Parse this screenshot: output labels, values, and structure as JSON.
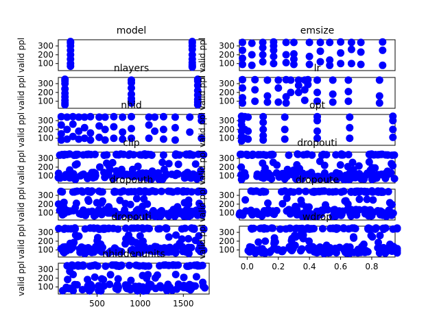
{
  "chart_data": [
    {
      "type": "scatter",
      "title": "model",
      "ylabel": "valid ppl",
      "yticks": [
        "100",
        "200",
        "300"
      ],
      "ylim": [
        20,
        370
      ],
      "xlim": [
        -0.1,
        1.1
      ],
      "xticks": [],
      "x": [
        0,
        0,
        0,
        0,
        0,
        0,
        0,
        0,
        1,
        1,
        1,
        1,
        1,
        1,
        1,
        1,
        1,
        1
      ],
      "y": [
        350,
        335,
        300,
        250,
        200,
        150,
        100,
        70,
        350,
        335,
        300,
        260,
        200,
        150,
        110,
        85,
        70,
        60
      ]
    },
    {
      "type": "scatter",
      "title": "emsize",
      "ylabel": "valid ppl",
      "yticks": [
        "100",
        "200",
        "300"
      ],
      "ylim": [
        20,
        370
      ],
      "xlim": [
        0,
        1
      ],
      "xticks": [],
      "x": [
        0.02,
        0.02,
        0.02,
        0.02,
        0.08,
        0.08,
        0.08,
        0.15,
        0.15,
        0.15,
        0.15,
        0.22,
        0.22,
        0.22,
        0.22,
        0.22,
        0.3,
        0.3,
        0.3,
        0.35,
        0.35,
        0.35,
        0.35,
        0.45,
        0.45,
        0.45,
        0.52,
        0.52,
        0.52,
        0.58,
        0.58,
        0.58,
        0.65,
        0.65,
        0.65,
        0.72,
        0.72,
        0.72,
        0.78,
        0.78,
        0.78,
        0.92,
        0.92,
        0.92
      ],
      "y": [
        340,
        250,
        160,
        90,
        330,
        200,
        80,
        340,
        280,
        200,
        120,
        345,
        300,
        250,
        180,
        100,
        340,
        200,
        110,
        340,
        210,
        150,
        90,
        340,
        180,
        90,
        340,
        240,
        120,
        340,
        140,
        80,
        345,
        220,
        100,
        340,
        260,
        100,
        340,
        230,
        90,
        345,
        250,
        80
      ]
    },
    {
      "type": "scatter",
      "title": "nlayers",
      "ylabel": "valid ppl",
      "yticks": [
        "100",
        "200",
        "300"
      ],
      "ylim": [
        20,
        370
      ],
      "xlim": [
        -0.1,
        2.1
      ],
      "xticks": [],
      "x": [
        0,
        0,
        0,
        0,
        0,
        0,
        0,
        0,
        0,
        1,
        1,
        1,
        1,
        1,
        1,
        1,
        2,
        2,
        2,
        2,
        2,
        2,
        2,
        2
      ],
      "y": [
        350,
        330,
        300,
        240,
        190,
        150,
        110,
        80,
        60,
        340,
        310,
        250,
        180,
        130,
        100,
        80,
        350,
        330,
        280,
        220,
        170,
        120,
        90,
        60
      ]
    },
    {
      "type": "scatter",
      "title": "lr",
      "ylabel": "valid ppl",
      "yticks": [
        "100",
        "200",
        "300"
      ],
      "ylim": [
        20,
        370
      ],
      "xlim": [
        0,
        1
      ],
      "xticks": [],
      "x": [
        0.02,
        0.02,
        0.02,
        0.02,
        0.1,
        0.1,
        0.1,
        0.18,
        0.18,
        0.18,
        0.25,
        0.25,
        0.25,
        0.3,
        0.3,
        0.3,
        0.33,
        0.33,
        0.38,
        0.38,
        0.38,
        0.42,
        0.42,
        0.42,
        0.44,
        0.44,
        0.5,
        0.5,
        0.5,
        0.6,
        0.6,
        0.6,
        0.7,
        0.7,
        0.7,
        0.9,
        0.9,
        0.9
      ],
      "y": [
        345,
        250,
        140,
        80,
        345,
        230,
        100,
        340,
        160,
        90,
        340,
        250,
        90,
        345,
        150,
        80,
        340,
        200,
        340,
        280,
        200,
        340,
        230,
        110,
        345,
        290,
        340,
        200,
        100,
        340,
        180,
        90,
        340,
        210,
        100,
        340,
        160,
        80
      ]
    },
    {
      "type": "scatter",
      "title": "nhid",
      "ylabel": "valid ppl",
      "yticks": [
        "100",
        "200",
        "300"
      ],
      "ylim": [
        20,
        370
      ],
      "xlim": [
        0,
        1
      ],
      "xticks": [],
      "x": [
        0.02,
        0.02,
        0.02,
        0.02,
        0.06,
        0.06,
        0.06,
        0.1,
        0.1,
        0.1,
        0.14,
        0.14,
        0.14,
        0.18,
        0.18,
        0.18,
        0.22,
        0.22,
        0.22,
        0.28,
        0.28,
        0.28,
        0.32,
        0.32,
        0.32,
        0.38,
        0.38,
        0.38,
        0.44,
        0.44,
        0.44,
        0.5,
        0.5,
        0.5,
        0.62,
        0.62,
        0.62,
        0.66,
        0.66,
        0.72,
        0.72,
        0.72,
        0.8,
        0.8,
        0.8,
        0.9,
        0.9,
        0.98,
        0.98,
        0.98
      ],
      "y": [
        345,
        250,
        150,
        80,
        340,
        200,
        90,
        345,
        260,
        120,
        340,
        180,
        90,
        340,
        220,
        100,
        345,
        160,
        80,
        340,
        240,
        110,
        340,
        200,
        80,
        345,
        230,
        100,
        340,
        170,
        90,
        345,
        210,
        100,
        340,
        250,
        100,
        340,
        180,
        345,
        200,
        90,
        340,
        220,
        80,
        340,
        170,
        345,
        300,
        100
      ]
    },
    {
      "type": "scatter",
      "title": "opt",
      "ylabel": "valid ppl",
      "yticks": [
        "100",
        "200",
        "300"
      ],
      "ylim": [
        20,
        370
      ],
      "xlim": [
        -0.1,
        7.1
      ],
      "xticks": [],
      "x": [
        0,
        0,
        0,
        0,
        0,
        0,
        0.15,
        0.15,
        0.15,
        0.3,
        0.3,
        0.3,
        1,
        1,
        1,
        1,
        1,
        2,
        2,
        2,
        3.5,
        3.5,
        3.5,
        3.5,
        5,
        5,
        5,
        7,
        7,
        7,
        7
      ],
      "y": [
        350,
        300,
        250,
        180,
        120,
        70,
        345,
        200,
        100,
        340,
        180,
        90,
        345,
        280,
        200,
        130,
        80,
        340,
        200,
        90,
        345,
        300,
        180,
        100,
        340,
        220,
        100,
        350,
        300,
        200,
        110
      ]
    },
    {
      "type": "scatter",
      "title": "clip",
      "ylabel": "valid ppl",
      "yticks": [
        "100",
        "200",
        "300"
      ],
      "ylim": [
        20,
        370
      ],
      "xlim": [
        0,
        1
      ],
      "xticks": []
    },
    {
      "type": "scatter",
      "title": "dropouti",
      "ylabel": "valid ppl",
      "yticks": [
        "100",
        "200",
        "300"
      ],
      "ylim": [
        20,
        370
      ],
      "xlim": [
        0,
        1
      ],
      "xticks": []
    },
    {
      "type": "scatter",
      "title": "dropouth",
      "ylabel": "valid ppl",
      "yticks": [
        "100",
        "200",
        "300"
      ],
      "ylim": [
        20,
        370
      ],
      "xlim": [
        0,
        1
      ],
      "xticks": []
    },
    {
      "type": "scatter",
      "title": "dropoute",
      "ylabel": "valid ppl",
      "yticks": [
        "100",
        "200",
        "300"
      ],
      "ylim": [
        20,
        370
      ],
      "xlim": [
        0,
        1
      ],
      "xticks": []
    },
    {
      "type": "scatter",
      "title": "dropouti",
      "ylabel": "valid ppl",
      "yticks": [
        "100",
        "200",
        "300"
      ],
      "ylim": [
        20,
        370
      ],
      "xlim": [
        0,
        1
      ],
      "xticks": []
    },
    {
      "type": "scatter",
      "title": "wdrop",
      "ylabel": "valid ppl",
      "yticks": [
        "100",
        "200",
        "300"
      ],
      "ylim": [
        20,
        370
      ],
      "xlim": [
        -0.05,
        0.95
      ],
      "xticks": [
        "0.0",
        "0.2",
        "0.4",
        "0.6",
        "0.8"
      ],
      "xtick_values": [
        0,
        0.2,
        0.4,
        0.6,
        0.8
      ]
    },
    {
      "type": "scatter",
      "title": "nhiddenunits",
      "ylabel": "valid ppl",
      "yticks": [
        "100",
        "200",
        "300"
      ],
      "ylim": [
        20,
        370
      ],
      "xlim": [
        50,
        1800
      ],
      "xticks": [
        "500",
        "1000",
        "1500"
      ],
      "xtick_values": [
        500,
        1000,
        1500
      ]
    }
  ],
  "colors": {
    "points": "#0000ff",
    "axes": "#000000",
    "background": "#ffffff"
  }
}
